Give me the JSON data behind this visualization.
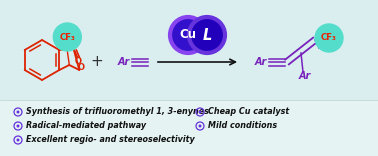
{
  "bg_color": "#e5f3f3",
  "bg_top_color": "#daeef0",
  "arrow_color": "#111111",
  "cu_fill_color": "#3311cc",
  "cu_edge_color": "#8844ee",
  "l_fill_color": "#2200bb",
  "l_edge_color": "#6633dd",
  "cf3_bubble_color": "#55ddcc",
  "cf3_text_color": "#ee2200",
  "reagent_color": "#7722bb",
  "bond_color": "#7722bb",
  "ring_color": "#dd2200",
  "bullet_color": "#6633dd",
  "text_color": "#111111",
  "bullet_items_col1": [
    "Synthesis of trifluoromethyl 1, 3-enynes",
    "Radical-mediated pathway",
    "Excellent regio- and stereoselectivity"
  ],
  "bullet_items_col2": [
    "Cheap Cu catalyst",
    "Mild conditions"
  ],
  "font_size_bullets": 5.8,
  "font_size_labels": 7.0,
  "font_size_cf3": 6.2,
  "font_size_cu": 8.5
}
